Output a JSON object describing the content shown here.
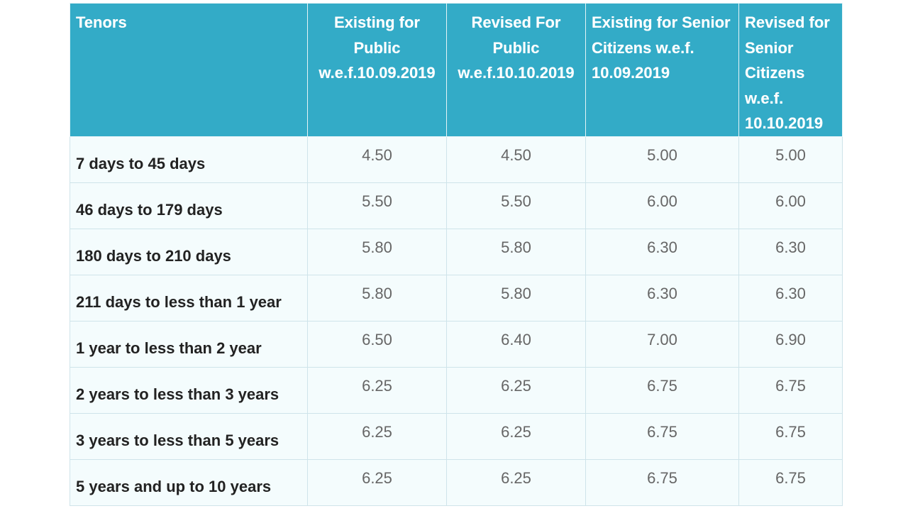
{
  "table": {
    "headers": [
      "Tenors",
      "Existing for Public w.e.f.10.09.2019",
      "Revised For Public w.e.f.10.10.2019",
      "Existing for Senior Citizens w.e.f. 10.09.2019",
      "Revised for Senior Citizens w.e.f. 10.10.2019"
    ],
    "rows": [
      [
        "7 days to 45 days",
        "4.50",
        "4.50",
        "5.00",
        "5.00"
      ],
      [
        "46 days to 179 days",
        "5.50",
        "5.50",
        "6.00",
        "6.00"
      ],
      [
        "180 days to 210 days",
        "5.80",
        "5.80",
        "6.30",
        "6.30"
      ],
      [
        "211 days to less than 1 year",
        "5.80",
        "5.80",
        "6.30",
        "6.30"
      ],
      [
        "1 year to less than 2 year",
        "6.50",
        "6.40",
        "7.00",
        "6.90"
      ],
      [
        "2 years to less than 3 years",
        "6.25",
        "6.25",
        "6.75",
        "6.75"
      ],
      [
        "3 years to less than 5 years",
        "6.25",
        "6.25",
        "6.75",
        "6.75"
      ],
      [
        "5 years and up to 10 years",
        "6.25",
        "6.25",
        "6.75",
        "6.75"
      ]
    ]
  },
  "colors": {
    "header_bg": "#33abc7",
    "header_text": "#ffffff",
    "cell_bg": "#f4fcfd",
    "border": "#cfe4ea",
    "tenor_text": "#222222",
    "value_text": "#666666"
  }
}
